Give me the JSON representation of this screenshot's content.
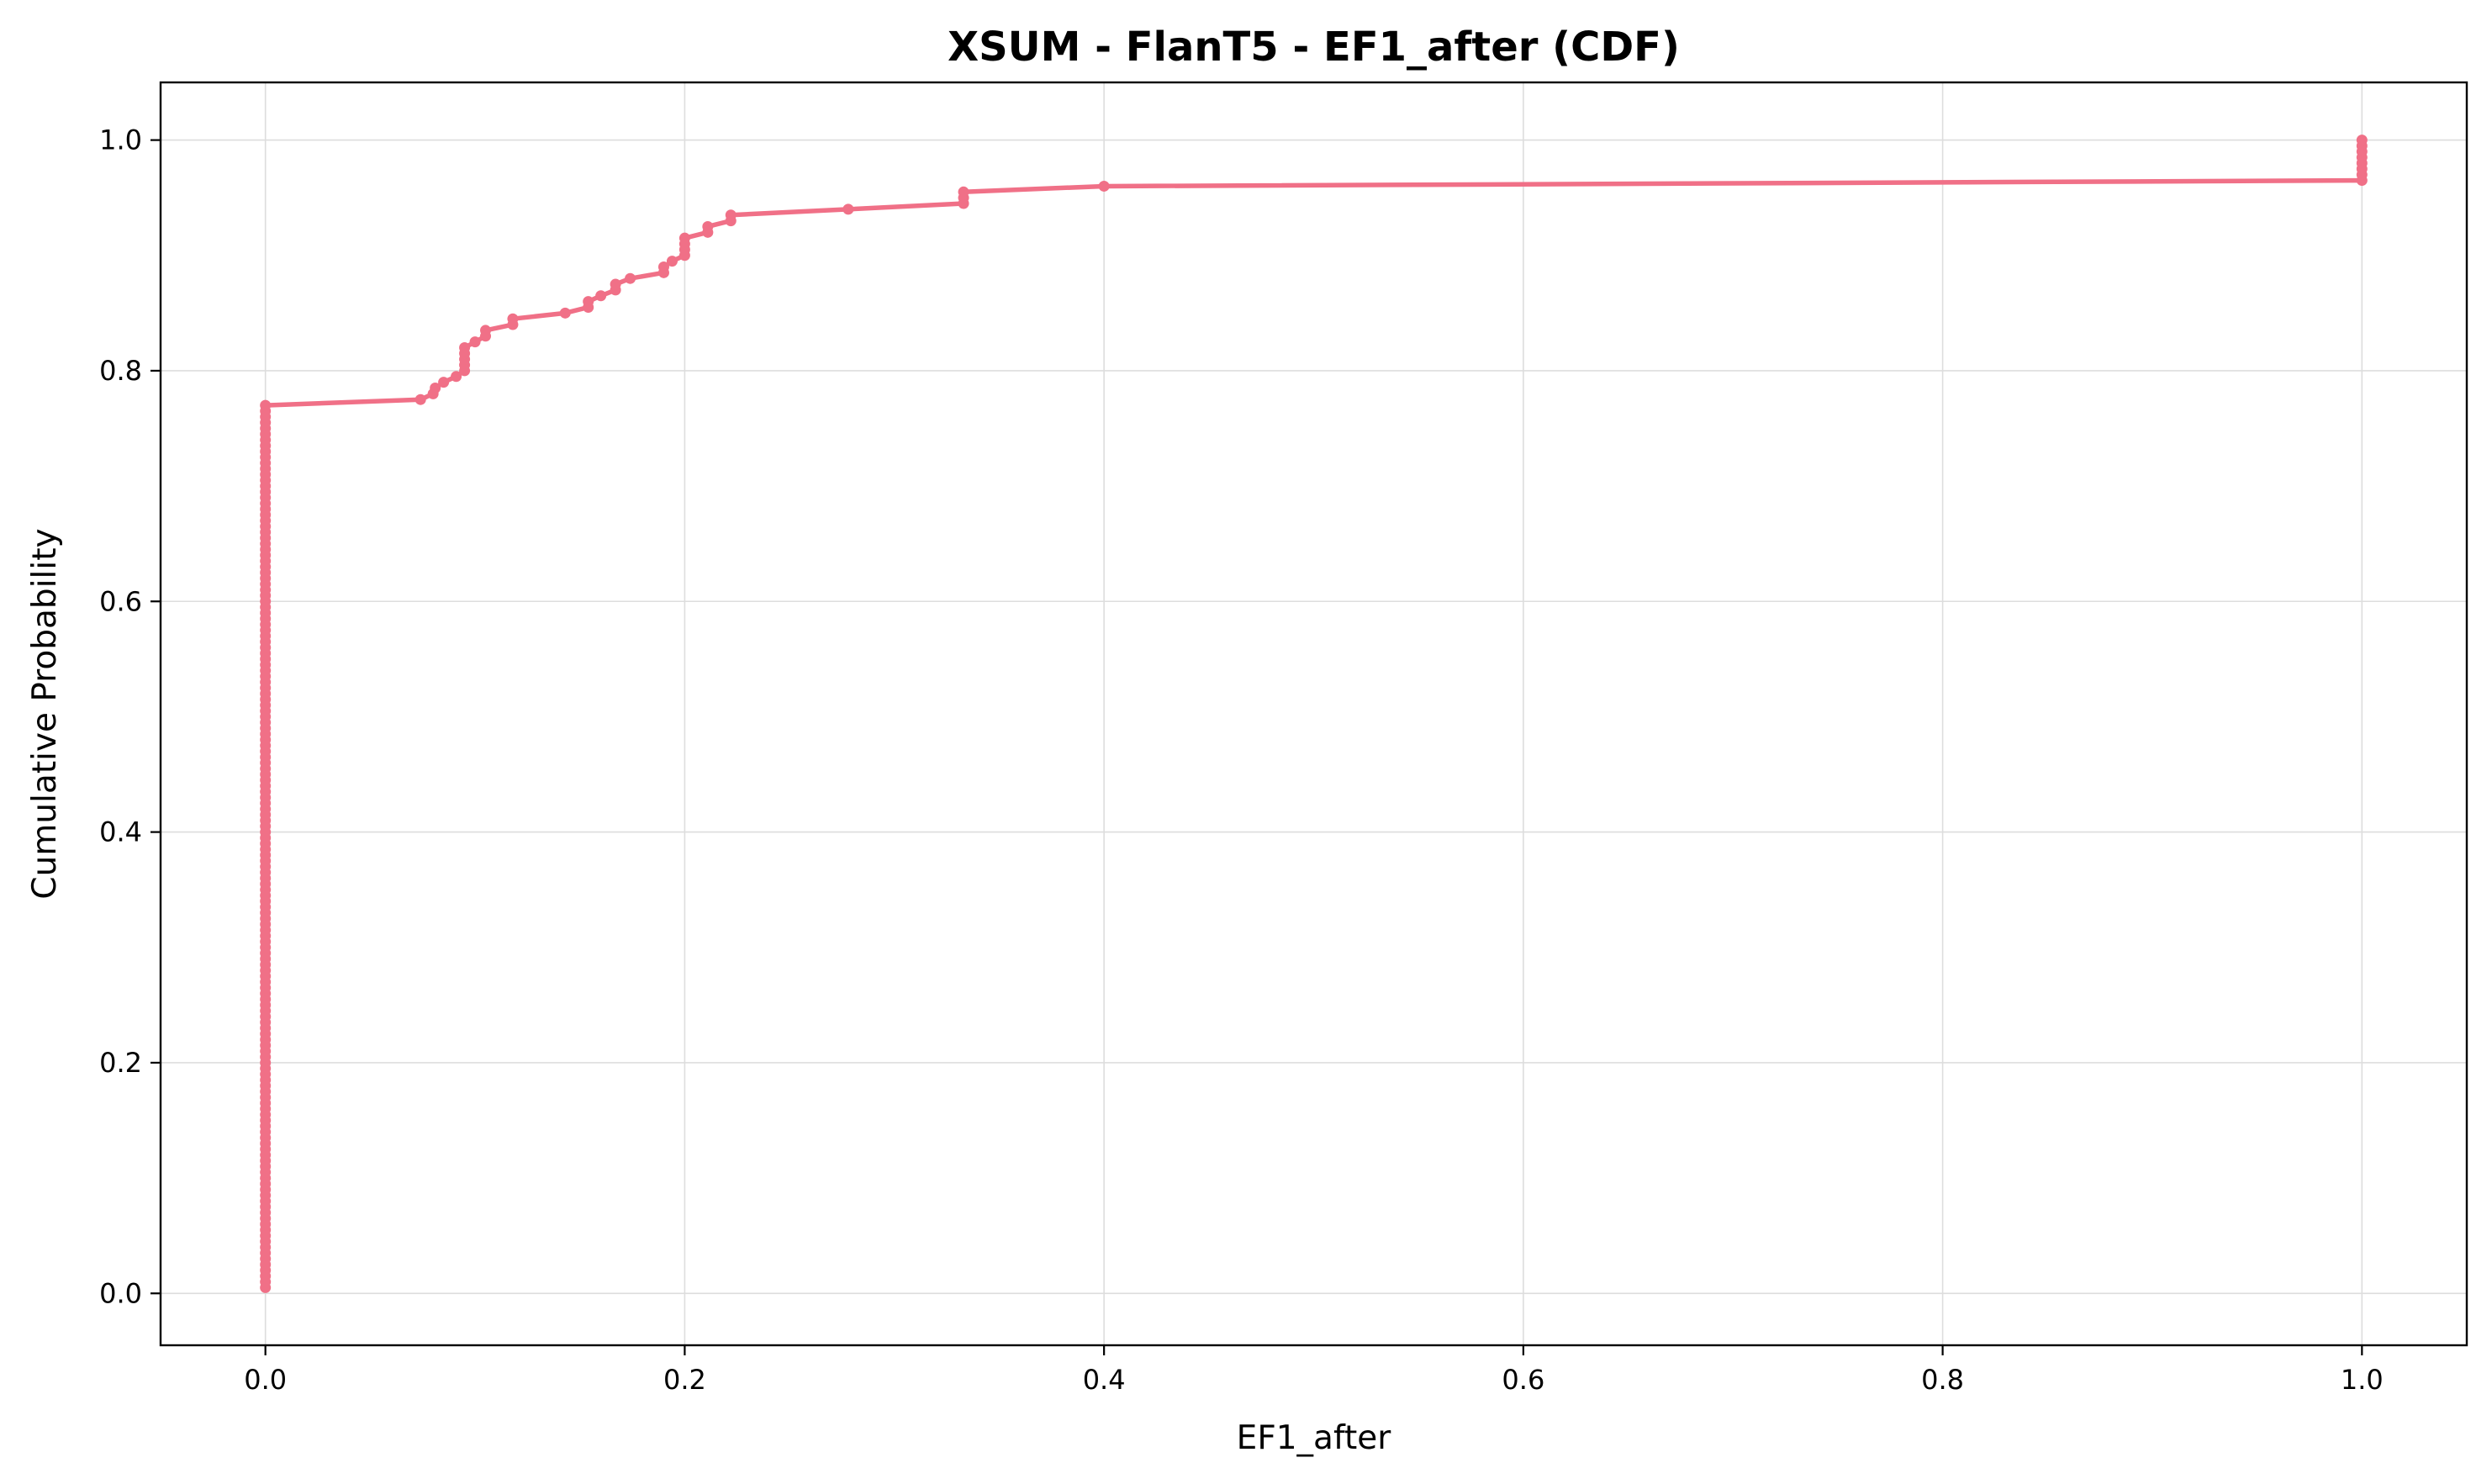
{
  "chart_data": {
    "type": "line",
    "title": "XSUM - FlanT5 - EF1_after (CDF)",
    "xlabel": "EF1_after",
    "ylabel": "Cumulative Probability",
    "xlim": [
      -0.05,
      1.05
    ],
    "ylim": [
      -0.045,
      1.05
    ],
    "xticks": [
      0.0,
      0.2,
      0.4,
      0.6,
      0.8,
      1.0
    ],
    "xtick_labels": [
      "0.0",
      "0.2",
      "0.4",
      "0.6",
      "0.8",
      "1.0"
    ],
    "yticks": [
      0.0,
      0.2,
      0.4,
      0.6,
      0.8,
      1.0
    ],
    "ytick_labels": [
      "0.0",
      "0.2",
      "0.4",
      "0.6",
      "0.8",
      "1.0"
    ],
    "grid": true,
    "color": "#f07087",
    "series": [
      {
        "name": "EF1_after",
        "zero_run": {
          "x": 0.0,
          "y_start": 0.005,
          "y_end": 0.77,
          "step": 0.005
        },
        "one_run": {
          "x": 1.0,
          "y_start": 0.965,
          "y_end": 1.0,
          "step": 0.005
        },
        "points": [
          [
            0.074,
            0.775
          ],
          [
            0.08,
            0.78
          ],
          [
            0.081,
            0.785
          ],
          [
            0.085,
            0.79
          ],
          [
            0.091,
            0.795
          ],
          [
            0.095,
            0.8
          ],
          [
            0.095,
            0.805
          ],
          [
            0.095,
            0.81
          ],
          [
            0.095,
            0.815
          ],
          [
            0.095,
            0.82
          ],
          [
            0.1,
            0.825
          ],
          [
            0.105,
            0.83
          ],
          [
            0.105,
            0.835
          ],
          [
            0.118,
            0.84
          ],
          [
            0.118,
            0.845
          ],
          [
            0.143,
            0.85
          ],
          [
            0.154,
            0.855
          ],
          [
            0.154,
            0.86
          ],
          [
            0.16,
            0.865
          ],
          [
            0.167,
            0.87
          ],
          [
            0.167,
            0.875
          ],
          [
            0.174,
            0.88
          ],
          [
            0.19,
            0.885
          ],
          [
            0.19,
            0.89
          ],
          [
            0.194,
            0.895
          ],
          [
            0.2,
            0.9
          ],
          [
            0.2,
            0.905
          ],
          [
            0.2,
            0.91
          ],
          [
            0.2,
            0.915
          ],
          [
            0.211,
            0.92
          ],
          [
            0.211,
            0.925
          ],
          [
            0.222,
            0.93
          ],
          [
            0.222,
            0.935
          ],
          [
            0.278,
            0.94
          ],
          [
            0.333,
            0.945
          ],
          [
            0.333,
            0.95
          ],
          [
            0.333,
            0.955
          ],
          [
            0.4,
            0.96
          ]
        ]
      }
    ]
  }
}
